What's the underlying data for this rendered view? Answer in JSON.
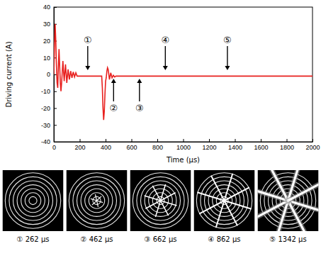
{
  "chart_data": {
    "type": "line",
    "x_label": "Time (μs)",
    "y_label": "Driving current (A)",
    "x": [
      0,
      5,
      10,
      15,
      20,
      25,
      30,
      35,
      40,
      45,
      50,
      55,
      60,
      70,
      80,
      90,
      100,
      110,
      120,
      130,
      140,
      150,
      160,
      170,
      180,
      200,
      220,
      250,
      300,
      350,
      370,
      375,
      380,
      385,
      390,
      395,
      400,
      405,
      410,
      415,
      420,
      425,
      430,
      440,
      450,
      460,
      470,
      480,
      500,
      550,
      600,
      700,
      800,
      1000,
      1200,
      1400,
      1600,
      1800,
      2000
    ],
    "series": [
      {
        "color": "#e8201e",
        "values": [
          0,
          18,
          30,
          20,
          5,
          -5,
          -8,
          5,
          15,
          5,
          -5,
          -10,
          -5,
          8,
          -4,
          6,
          -5,
          3,
          -3,
          2,
          -2,
          1.5,
          -1.5,
          1,
          -1,
          -1,
          -1,
          -1,
          -1,
          -1,
          -1,
          -8,
          -20,
          -27,
          -22,
          -12,
          -4,
          -2,
          2,
          4,
          3,
          0,
          -3,
          1,
          -2,
          -0.5,
          -1.5,
          -1,
          -1,
          -1,
          -1,
          -1,
          -1,
          -1,
          -1,
          -1,
          -1,
          -1,
          -1
        ]
      }
    ],
    "xlim": [
      0,
      2000
    ],
    "xticks": [
      0,
      200,
      400,
      600,
      800,
      1000,
      1200,
      1400,
      1600,
      1800,
      2000
    ],
    "ylim": [
      -40,
      40
    ],
    "yticks": [
      -40,
      -30,
      -20,
      -10,
      0,
      10,
      20,
      30,
      40
    ],
    "annotations": [
      {
        "label": "①",
        "x": 262,
        "position": "above"
      },
      {
        "label": "②",
        "x": 462,
        "position": "below"
      },
      {
        "label": "③",
        "x": 662,
        "position": "below"
      },
      {
        "label": "④",
        "x": 862,
        "position": "above"
      },
      {
        "label": "⑤",
        "x": 1342,
        "position": "above"
      }
    ]
  },
  "frames": [
    {
      "caption": "① 262 μs"
    },
    {
      "caption": "② 462 μs"
    },
    {
      "caption": "③ 662 μs"
    },
    {
      "caption": "④ 862 μs"
    },
    {
      "caption": "⑤ 1342 μs"
    }
  ]
}
